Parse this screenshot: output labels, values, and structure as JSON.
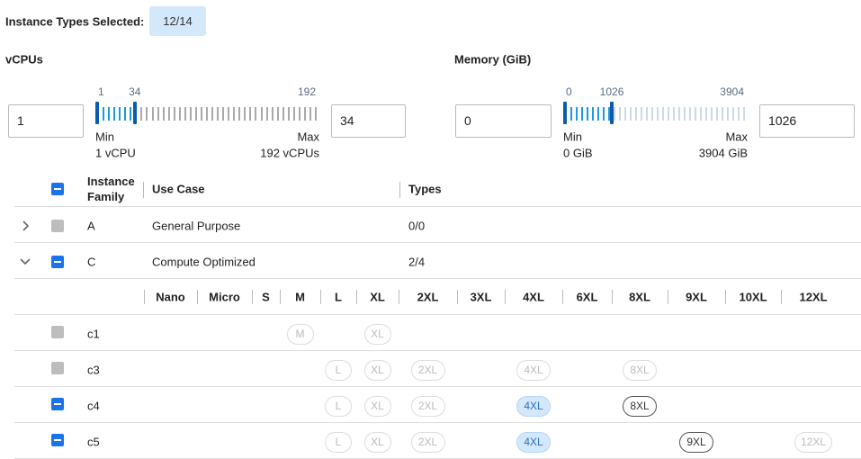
{
  "header": {
    "label": "Instance Types Selected:",
    "badge": "12/14"
  },
  "filters": [
    {
      "title": "vCPUs",
      "range": {
        "min": 1,
        "low": 1,
        "high": 34,
        "max": 192
      },
      "min_caption": "Min",
      "min_text": "1 vCPU",
      "max_caption": "Max",
      "max_text": "192 vCPUs"
    },
    {
      "title": "Memory (GiB)",
      "range": {
        "min": 0,
        "low": 0,
        "high": 1026,
        "max": 3904
      },
      "min_caption": "Min",
      "min_text": "0 GiB",
      "max_caption": "Max",
      "max_text": "3904 GiB"
    }
  ],
  "table": {
    "columns": [
      "Instance Family",
      "Use Case",
      "Types"
    ],
    "header_checkbox": "indeterminate",
    "families": [
      {
        "name": "A",
        "use_case": "General Purpose",
        "types": "0/0",
        "checkbox": "disabled",
        "expanded": false
      },
      {
        "name": "C",
        "use_case": "Compute Optimized",
        "types": "2/4",
        "checkbox": "indeterminate",
        "expanded": true
      }
    ],
    "sizes": [
      "Nano",
      "Micro",
      "S",
      "M",
      "L",
      "XL",
      "2XL",
      "3XL",
      "4XL",
      "6XL",
      "8XL",
      "9XL",
      "10XL",
      "12XL"
    ],
    "instances": [
      {
        "name": "c1",
        "checkbox": "disabled",
        "options": [
          {
            "label": "M",
            "state": "disabled"
          },
          {
            "label": "XL",
            "state": "disabled"
          }
        ]
      },
      {
        "name": "c3",
        "checkbox": "disabled",
        "options": [
          {
            "label": "L",
            "state": "disabled"
          },
          {
            "label": "XL",
            "state": "disabled"
          },
          {
            "label": "2XL",
            "state": "disabled"
          },
          {
            "label": "4XL",
            "state": "disabled"
          },
          {
            "label": "8XL",
            "state": "disabled"
          }
        ]
      },
      {
        "name": "c4",
        "checkbox": "indeterminate",
        "options": [
          {
            "label": "L",
            "state": "disabled"
          },
          {
            "label": "XL",
            "state": "disabled"
          },
          {
            "label": "2XL",
            "state": "disabled"
          },
          {
            "label": "4XL",
            "state": "selected"
          },
          {
            "label": "8XL",
            "state": "available"
          }
        ]
      },
      {
        "name": "c5",
        "checkbox": "indeterminate",
        "options": [
          {
            "label": "L",
            "state": "disabled"
          },
          {
            "label": "XL",
            "state": "disabled"
          },
          {
            "label": "2XL",
            "state": "disabled"
          },
          {
            "label": "4XL",
            "state": "selected"
          },
          {
            "label": "9XL",
            "state": "available"
          },
          {
            "label": "12XL",
            "state": "disabled"
          }
        ]
      }
    ]
  }
}
